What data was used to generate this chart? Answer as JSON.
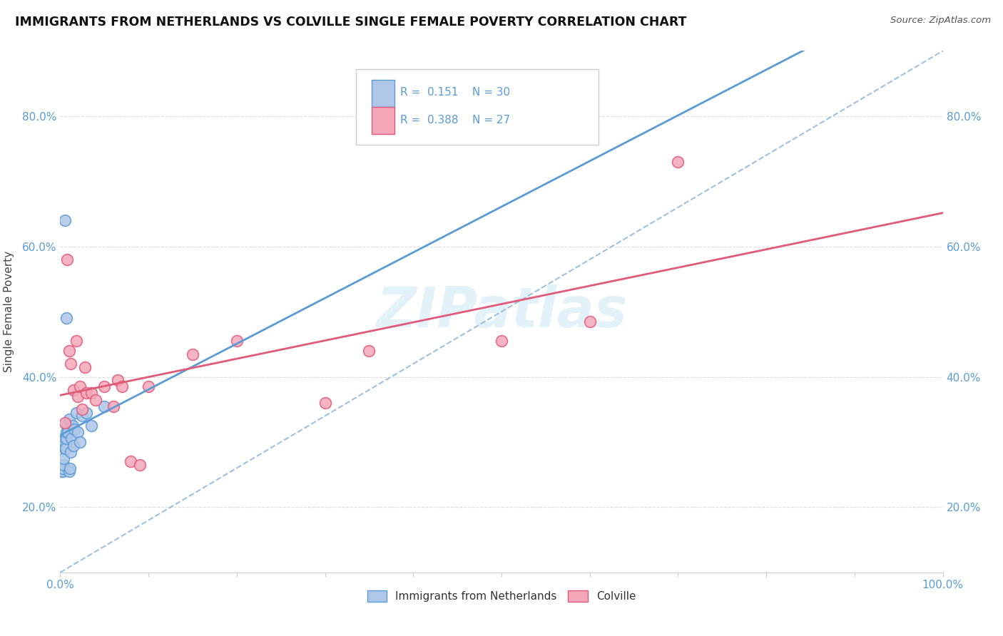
{
  "title": "IMMIGRANTS FROM NETHERLANDS VS COLVILLE SINGLE FEMALE POVERTY CORRELATION CHART",
  "source": "Source: ZipAtlas.com",
  "ylabel": "Single Female Poverty",
  "legend_label1": "Immigrants from Netherlands",
  "legend_label2": "Colville",
  "legend_r1": "R =  0.151",
  "legend_n1": "N = 30",
  "legend_r2": "R =  0.388",
  "legend_n2": "N = 27",
  "watermark": "ZIPatlas",
  "blue_fill": "#aec6e8",
  "blue_edge": "#5b9bd5",
  "pink_fill": "#f4a7b9",
  "pink_edge": "#e05a7a",
  "dash_color": "#a0c0e0",
  "blue_scatter": [
    [
      0.002,
      0.255
    ],
    [
      0.003,
      0.255
    ],
    [
      0.003,
      0.26
    ],
    [
      0.004,
      0.265
    ],
    [
      0.004,
      0.275
    ],
    [
      0.005,
      0.29
    ],
    [
      0.005,
      0.305
    ],
    [
      0.006,
      0.295
    ],
    [
      0.006,
      0.29
    ],
    [
      0.007,
      0.305
    ],
    [
      0.007,
      0.315
    ],
    [
      0.008,
      0.325
    ],
    [
      0.009,
      0.315
    ],
    [
      0.01,
      0.335
    ],
    [
      0.01,
      0.255
    ],
    [
      0.011,
      0.26
    ],
    [
      0.012,
      0.285
    ],
    [
      0.013,
      0.305
    ],
    [
      0.014,
      0.325
    ],
    [
      0.015,
      0.295
    ],
    [
      0.016,
      0.32
    ],
    [
      0.018,
      0.345
    ],
    [
      0.02,
      0.315
    ],
    [
      0.022,
      0.3
    ],
    [
      0.025,
      0.34
    ],
    [
      0.03,
      0.345
    ],
    [
      0.035,
      0.325
    ],
    [
      0.05,
      0.355
    ],
    [
      0.005,
      0.64
    ],
    [
      0.007,
      0.49
    ]
  ],
  "pink_scatter": [
    [
      0.005,
      0.33
    ],
    [
      0.008,
      0.58
    ],
    [
      0.01,
      0.44
    ],
    [
      0.012,
      0.42
    ],
    [
      0.015,
      0.38
    ],
    [
      0.018,
      0.455
    ],
    [
      0.02,
      0.37
    ],
    [
      0.022,
      0.385
    ],
    [
      0.025,
      0.35
    ],
    [
      0.028,
      0.415
    ],
    [
      0.03,
      0.375
    ],
    [
      0.035,
      0.375
    ],
    [
      0.04,
      0.365
    ],
    [
      0.05,
      0.385
    ],
    [
      0.06,
      0.355
    ],
    [
      0.065,
      0.395
    ],
    [
      0.07,
      0.385
    ],
    [
      0.08,
      0.27
    ],
    [
      0.09,
      0.265
    ],
    [
      0.1,
      0.385
    ],
    [
      0.15,
      0.435
    ],
    [
      0.2,
      0.455
    ],
    [
      0.3,
      0.36
    ],
    [
      0.35,
      0.44
    ],
    [
      0.5,
      0.455
    ],
    [
      0.7,
      0.73
    ],
    [
      0.6,
      0.485
    ]
  ],
  "xlim": [
    0.0,
    1.0
  ],
  "ylim": [
    0.1,
    0.9
  ],
  "yticks": [
    0.2,
    0.4,
    0.6,
    0.8
  ],
  "ytick_labels": [
    "20.0%",
    "40.0%",
    "60.0%",
    "80.0%"
  ],
  "xtick_positions": [
    0.0,
    0.1,
    0.2,
    0.3,
    0.4,
    0.5,
    0.6,
    0.7,
    0.8,
    0.9,
    1.0
  ],
  "background_color": "#ffffff",
  "grid_color": "#dddddd",
  "tick_color": "#5b9bd5"
}
